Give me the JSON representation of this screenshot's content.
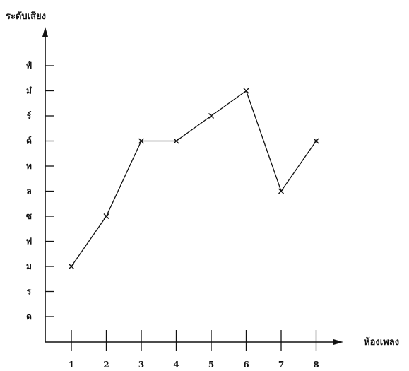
{
  "chart_data": {
    "type": "line",
    "title": "",
    "ylabel": "ระดับเสียง",
    "xlabel": "ห้องเพลง",
    "categories": [
      "1",
      "2",
      "3",
      "4",
      "5",
      "6",
      "7",
      "8"
    ],
    "y_levels": [
      "ด",
      "ร",
      "ม",
      "ฟ",
      "ซ",
      "ล",
      "ท",
      "ด์",
      "ร์",
      "มํ",
      "ฟํ"
    ],
    "series": [
      {
        "values": [
          "ม",
          "ซ",
          "ด์",
          "ด์",
          "ร์",
          "มํ",
          "ล",
          "ด์"
        ]
      }
    ],
    "marker": "x",
    "grid": false,
    "legend": "none"
  }
}
